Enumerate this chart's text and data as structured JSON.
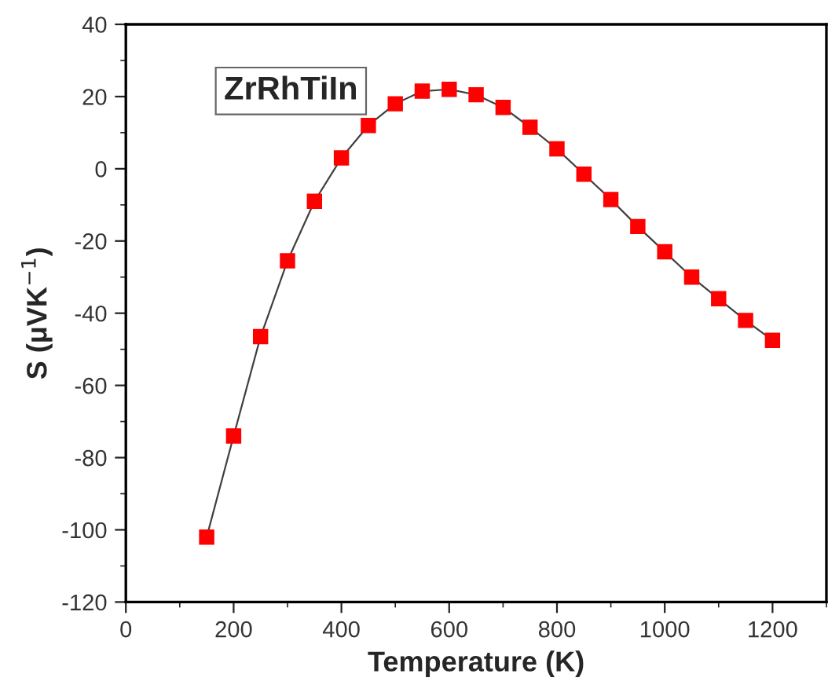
{
  "chart_data": {
    "type": "line",
    "xlabel": "Temperature (K)",
    "ylabel": "S (μVK$^{−1}$)",
    "annotations": [
      "ZrRhTiIn"
    ],
    "x": [
      150,
      200,
      250,
      300,
      350,
      400,
      450,
      500,
      550,
      600,
      650,
      700,
      750,
      800,
      850,
      900,
      950,
      1000,
      1050,
      1100,
      1150,
      1200
    ],
    "series": [
      {
        "color": "#ff0000",
        "values": [
          -102,
          -74,
          -46.5,
          -25.5,
          -9,
          3,
          12,
          18,
          21.5,
          22,
          20.5,
          17,
          11.5,
          5.5,
          -1.5,
          -8.5,
          -16,
          -23,
          -30,
          -36,
          -42,
          -47.5
        ]
      }
    ],
    "marker": "square",
    "line_style": "solid",
    "xlim": [
      0,
      1300
    ],
    "xticks": [
      0,
      200,
      400,
      600,
      800,
      1000,
      1200
    ],
    "ylim": [
      -120,
      40
    ],
    "yticks": [
      -120,
      -100,
      -80,
      -60,
      -40,
      -20,
      0,
      20,
      40
    ],
    "grid": false,
    "legend": false
  }
}
